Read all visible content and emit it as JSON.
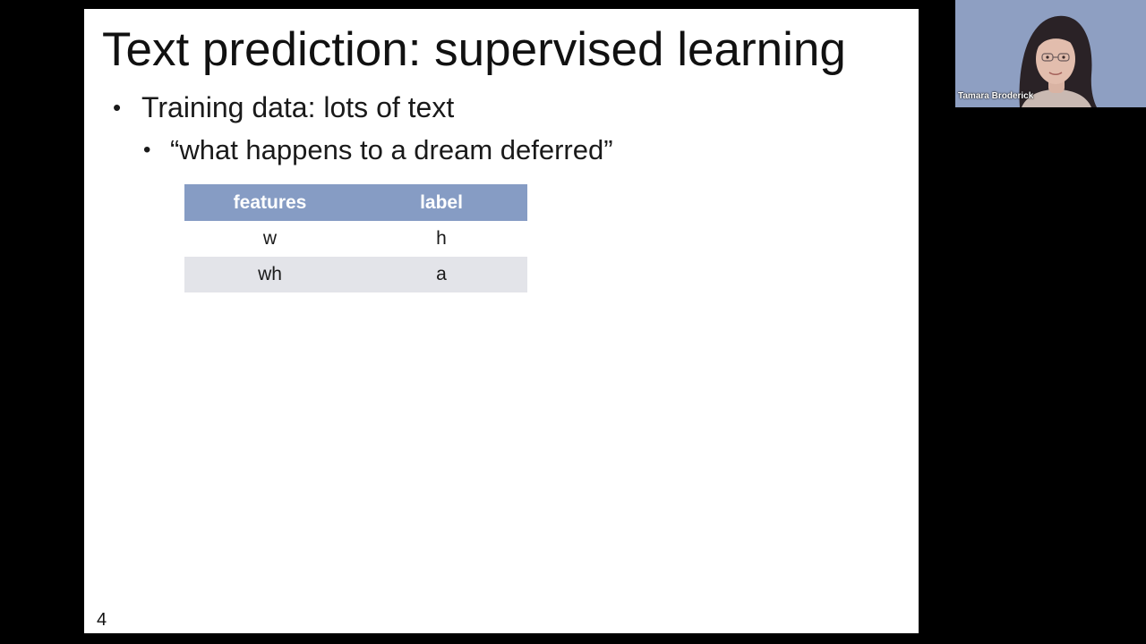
{
  "slide": {
    "title": "Text prediction: supervised learning",
    "bullets": [
      {
        "marker": "•",
        "text": "Training data: lots of text"
      },
      {
        "marker": "•",
        "text": "“what happens to a dream deferred”"
      }
    ],
    "table": {
      "headers": [
        "features",
        "label"
      ],
      "rows": [
        [
          "w",
          "h"
        ],
        [
          "wh",
          "a"
        ]
      ]
    },
    "page_number": "4"
  },
  "video": {
    "participant_name": "Tamara Broderick"
  },
  "colors": {
    "screen_background": "#000000",
    "slide_background": "#ffffff",
    "table_header": "#869cc4",
    "table_row_alt": "#e3e4e9",
    "video_background": "#8e9fc2"
  }
}
